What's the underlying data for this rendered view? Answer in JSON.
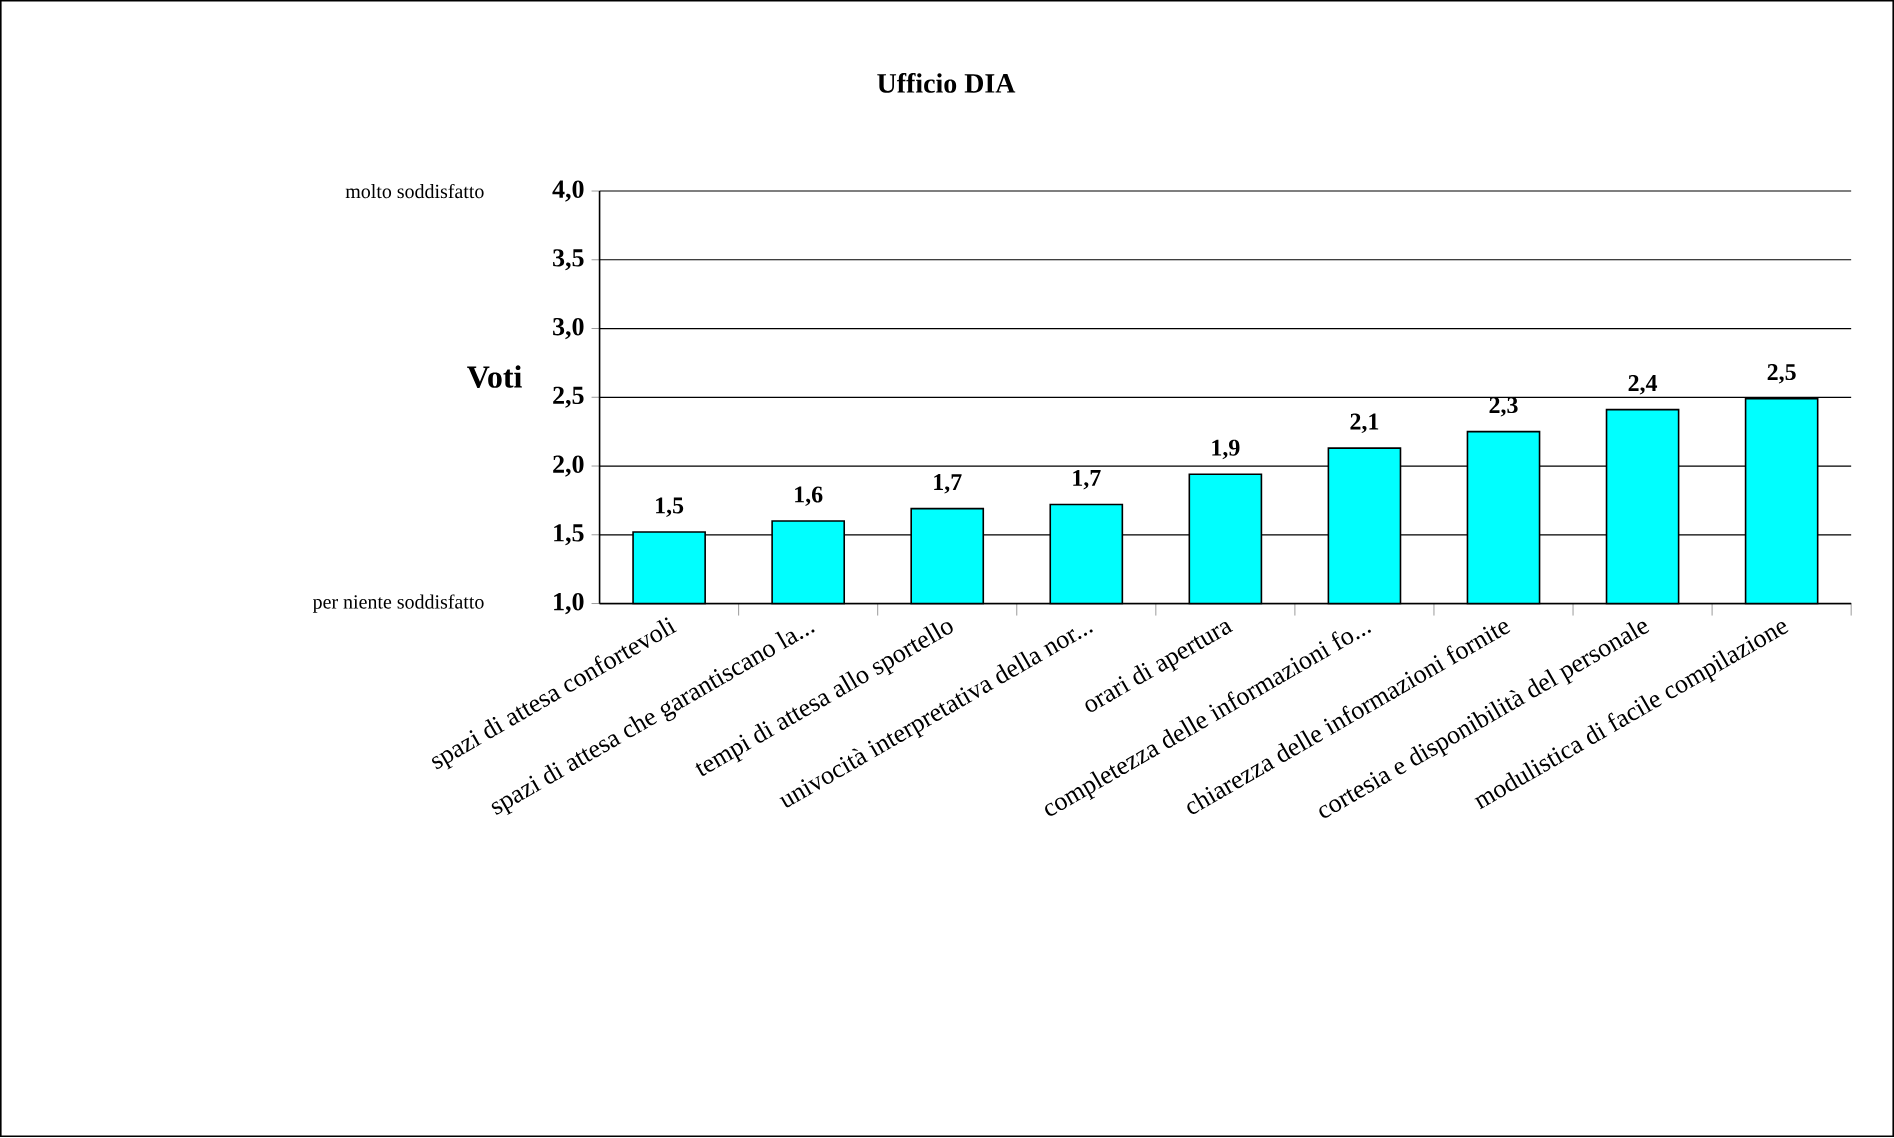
{
  "chart_data": {
    "type": "bar",
    "title": "Ufficio DIA",
    "ylabel": "Voti",
    "categories": [
      "spazi di attesa confortevoli",
      "spazi di attesa che garantiscano la...",
      "tempi di attesa allo sportello",
      "univocità interpretativa della nor...",
      "orari di apertura",
      "completezza delle informazioni fo...",
      "chiarezza delle informazioni fornite",
      "cortesia e disponibilità del personale",
      "modulistica di facile compilazione"
    ],
    "values": [
      1.52,
      1.6,
      1.69,
      1.72,
      1.94,
      2.13,
      2.25,
      2.41,
      2.49
    ],
    "value_labels": [
      "1,5",
      "1,6",
      "1,7",
      "1,7",
      "1,9",
      "2,1",
      "2,3",
      "2,4",
      "2,5"
    ],
    "color": "#00ffff",
    "ylim": [
      1.0,
      4.0
    ],
    "yticks": [
      {
        "value": 1.0,
        "label": "1,0"
      },
      {
        "value": 1.5,
        "label": "1,5"
      },
      {
        "value": 2.0,
        "label": "2,0"
      },
      {
        "value": 2.5,
        "label": "2,5"
      },
      {
        "value": 3.0,
        "label": "3,0"
      },
      {
        "value": 3.5,
        "label": "3,5"
      },
      {
        "value": 4.0,
        "label": "4,0"
      }
    ],
    "grid": "y",
    "annotations": [
      "molto soddisfatto",
      "per niente soddisfatto"
    ]
  }
}
